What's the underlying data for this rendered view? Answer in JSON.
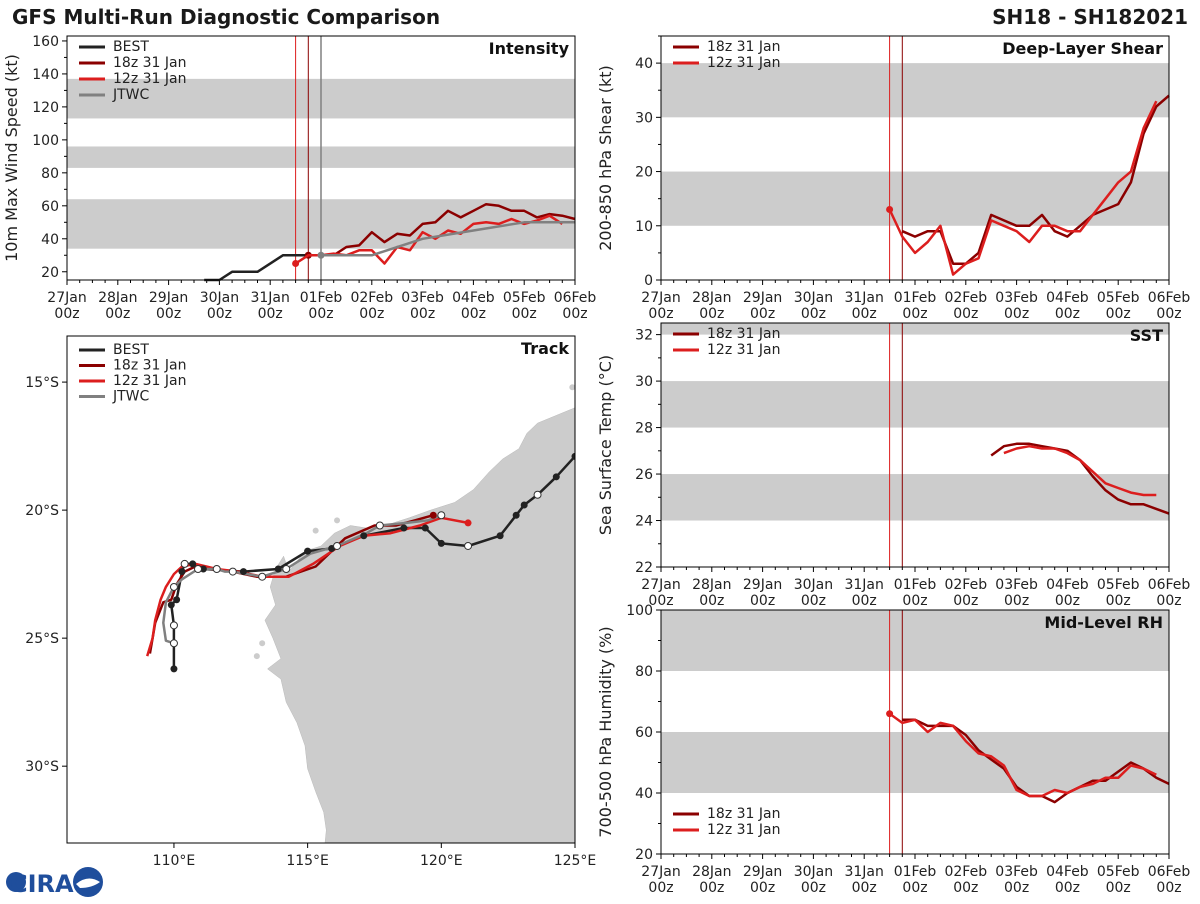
{
  "header": {
    "title": "GFS Multi-Run Diagnostic Comparison",
    "storm_id": "SH18 - SH182021"
  },
  "logo": {
    "text": "CIRA"
  },
  "colors": {
    "best": "#222222",
    "run18z": "#8b0000",
    "run12z": "#dc1e1e",
    "jtwc": "#808080",
    "band": "#cccccc",
    "land": "#cccccc",
    "marker": "#c8102e"
  },
  "time_axis": {
    "ticks": [
      {
        "t": 0,
        "l1": "27Jan",
        "l2": "00z"
      },
      {
        "t": 1,
        "l1": "28Jan",
        "l2": "00z"
      },
      {
        "t": 2,
        "l1": "29Jan",
        "l2": "00z"
      },
      {
        "t": 3,
        "l1": "30Jan",
        "l2": "00z"
      },
      {
        "t": 4,
        "l1": "31Jan",
        "l2": "00z"
      },
      {
        "t": 5,
        "l1": "01Feb",
        "l2": "00z"
      },
      {
        "t": 6,
        "l1": "02Feb",
        "l2": "00z"
      },
      {
        "t": 7,
        "l1": "03Feb",
        "l2": "00z"
      },
      {
        "t": 8,
        "l1": "04Feb",
        "l2": "00z"
      },
      {
        "t": 9,
        "l1": "05Feb",
        "l2": "00z"
      },
      {
        "t": 10,
        "l1": "06Feb",
        "l2": "00z"
      }
    ],
    "xlim": [
      0,
      10
    ],
    "init_times": [
      4.5,
      4.75
    ]
  },
  "chart_data": [
    {
      "id": "intensity",
      "type": "line",
      "title": "Intensity",
      "ylabel": "10m Max Wind Speed (kt)",
      "ylim": [
        15,
        163
      ],
      "yticks": [
        20,
        40,
        60,
        80,
        100,
        120,
        140,
        160
      ],
      "bands": [
        [
          34,
          64
        ],
        [
          83,
          96
        ],
        [
          113,
          137
        ]
      ],
      "extra_vlines": [
        5.0
      ],
      "legend": [
        "BEST",
        "18z 31 Jan",
        "12z 31 Jan",
        "JTWC"
      ],
      "series": [
        {
          "name": "BEST",
          "key": "best",
          "x": [
            2.7,
            2.95,
            3.0,
            3.25,
            3.75,
            4.25,
            4.75,
            5.0
          ],
          "y": [
            15,
            15,
            15,
            20,
            20,
            30,
            30,
            30
          ]
        },
        {
          "name": "18z 31 Jan",
          "key": "run18z",
          "dots": [
            0
          ],
          "x": [
            4.75,
            5.0,
            5.25,
            5.5,
            5.75,
            6.0,
            6.25,
            6.5,
            6.75,
            7.0,
            7.25,
            7.5,
            7.75,
            8.0,
            8.25,
            8.5,
            8.75,
            9.0,
            9.25,
            9.5,
            9.75,
            10.0
          ],
          "y": [
            30,
            30,
            30,
            35,
            36,
            44,
            38,
            43,
            42,
            49,
            50,
            57,
            53,
            57,
            61,
            60,
            57,
            57,
            53,
            55,
            54,
            52
          ]
        },
        {
          "name": "12z 31 Jan",
          "key": "run12z",
          "dots": [
            0
          ],
          "x": [
            4.5,
            4.75,
            5.0,
            5.25,
            5.5,
            5.75,
            6.0,
            6.25,
            6.5,
            6.75,
            7.0,
            7.25,
            7.5,
            7.75,
            8.0,
            8.25,
            8.5,
            8.75,
            9.0,
            9.25,
            9.5,
            9.75
          ],
          "y": [
            25,
            30,
            30,
            31,
            30,
            33,
            33,
            25,
            35,
            33,
            44,
            40,
            45,
            43,
            49,
            50,
            49,
            52,
            49,
            51,
            54,
            49
          ]
        },
        {
          "name": "JTWC",
          "key": "jtwc",
          "dots": [
            0
          ],
          "x": [
            5.0,
            6.0,
            7.0,
            8.0,
            9.0,
            10.0
          ],
          "y": [
            30,
            30,
            40,
            45,
            50,
            50
          ]
        }
      ]
    },
    {
      "id": "shear",
      "type": "line",
      "title": "Deep-Layer Shear",
      "ylabel": "200-850 hPa Shear (kt)",
      "ylim": [
        0,
        45
      ],
      "yticks": [
        0,
        10,
        20,
        30,
        40
      ],
      "bands": [
        [
          10,
          20
        ],
        [
          30,
          40
        ]
      ],
      "extra_vlines": [],
      "legend": [
        "18z 31 Jan",
        "12z 31 Jan"
      ],
      "series": [
        {
          "name": "18z 31 Jan",
          "key": "run18z",
          "dots": [],
          "x": [
            4.75,
            5.0,
            5.25,
            5.5,
            5.75,
            6.0,
            6.25,
            6.5,
            6.75,
            7.0,
            7.25,
            7.5,
            7.75,
            8.0,
            8.25,
            8.5,
            8.75,
            9.0,
            9.25,
            9.5,
            9.75,
            10.0
          ],
          "y": [
            9,
            8,
            9,
            9,
            3,
            3,
            5,
            12,
            11,
            10,
            10,
            12,
            9,
            8,
            10,
            12,
            13,
            14,
            18,
            27,
            32,
            34
          ]
        },
        {
          "name": "12z 31 Jan",
          "key": "run12z",
          "dots": [
            0
          ],
          "x": [
            4.5,
            4.75,
            5.0,
            5.25,
            5.5,
            5.75,
            6.0,
            6.25,
            6.5,
            6.75,
            7.0,
            7.25,
            7.5,
            7.75,
            8.0,
            8.25,
            8.5,
            8.75,
            9.0,
            9.25,
            9.5,
            9.75
          ],
          "y": [
            13,
            8,
            5,
            7,
            10,
            1,
            3,
            4,
            11,
            10,
            9,
            7,
            10,
            10,
            9,
            9,
            12,
            15,
            18,
            20,
            28,
            33
          ]
        }
      ]
    },
    {
      "id": "sst",
      "type": "line",
      "title": "SST",
      "ylabel": "Sea Surface Temp (°C)",
      "ylim": [
        22,
        32.5
      ],
      "yticks": [
        22,
        24,
        26,
        28,
        30,
        32
      ],
      "bands": [
        [
          24,
          26
        ],
        [
          28,
          30
        ],
        [
          32,
          34
        ]
      ],
      "extra_vlines": [],
      "legend": [
        "18z 31 Jan",
        "12z 31 Jan"
      ],
      "series": [
        {
          "name": "18z 31 Jan",
          "key": "run18z",
          "dots": [],
          "x": [
            6.5,
            6.75,
            7.0,
            7.25,
            7.5,
            7.75,
            8.0,
            8.25,
            8.5,
            8.75,
            9.0,
            9.25,
            9.5,
            9.75,
            10.0
          ],
          "y": [
            26.8,
            27.2,
            27.3,
            27.3,
            27.2,
            27.1,
            27.0,
            26.6,
            25.9,
            25.3,
            24.9,
            24.7,
            24.7,
            24.5,
            24.3
          ]
        },
        {
          "name": "12z 31 Jan",
          "key": "run12z",
          "dots": [],
          "x": [
            6.75,
            7.0,
            7.25,
            7.5,
            7.75,
            8.0,
            8.25,
            8.5,
            8.75,
            9.0,
            9.25,
            9.5,
            9.75
          ],
          "y": [
            26.9,
            27.1,
            27.2,
            27.1,
            27.1,
            26.9,
            26.6,
            26.1,
            25.6,
            25.4,
            25.2,
            25.1,
            25.1
          ]
        }
      ]
    },
    {
      "id": "rh",
      "type": "line",
      "title": "Mid-Level RH",
      "ylabel": "700-500 hPa Humidity (%)",
      "ylim": [
        20,
        100
      ],
      "yticks": [
        20,
        40,
        60,
        80,
        100
      ],
      "bands": [
        [
          40,
          60
        ],
        [
          80,
          100
        ]
      ],
      "extra_vlines": [],
      "legend": [
        "18z 31 Jan",
        "12z 31 Jan"
      ],
      "legend_pos": "bottom-left",
      "series": [
        {
          "name": "18z 31 Jan",
          "key": "run18z",
          "dots": [],
          "x": [
            4.75,
            5.0,
            5.25,
            5.5,
            5.75,
            6.0,
            6.25,
            6.5,
            6.75,
            7.0,
            7.25,
            7.5,
            7.75,
            8.0,
            8.25,
            8.5,
            8.75,
            9.0,
            9.25,
            9.5,
            9.75,
            10.0
          ],
          "y": [
            64,
            64,
            62,
            62,
            62,
            59,
            54,
            51,
            48,
            42,
            39,
            39,
            37,
            40,
            42,
            44,
            44,
            47,
            50,
            48,
            45,
            43
          ]
        },
        {
          "name": "12z 31 Jan",
          "key": "run12z",
          "dots": [
            0
          ],
          "x": [
            4.5,
            4.75,
            5.0,
            5.25,
            5.5,
            5.75,
            6.0,
            6.25,
            6.5,
            6.75,
            7.0,
            7.25,
            7.5,
            7.75,
            8.0,
            8.25,
            8.5,
            8.75,
            9.0,
            9.25,
            9.5,
            9.75
          ],
          "y": [
            66,
            63,
            64,
            60,
            63,
            62,
            57,
            53,
            52,
            49,
            41,
            39,
            39,
            41,
            40,
            42,
            43,
            45,
            45,
            49,
            48,
            46
          ]
        }
      ]
    },
    {
      "id": "track",
      "type": "scatter",
      "title": "Track",
      "xlim": [
        106,
        125
      ],
      "ylim": [
        -33,
        -13.2
      ],
      "xticks": [
        {
          "v": 110,
          "l": "110°E"
        },
        {
          "v": 115,
          "l": "115°E"
        },
        {
          "v": 120,
          "l": "120°E"
        },
        {
          "v": 125,
          "l": "125°E"
        }
      ],
      "yticks": [
        {
          "v": -15,
          "l": "15°S"
        },
        {
          "v": -20,
          "l": "20°S"
        },
        {
          "v": -25,
          "l": "25°S"
        },
        {
          "v": -30,
          "l": "30°S"
        }
      ],
      "legend": [
        "BEST",
        "18z 31 Jan",
        "12z 31 Jan",
        "JTWC"
      ],
      "series": [
        {
          "name": "BEST",
          "key": "best",
          "lon": [
            125.0,
            124.3,
            123.6,
            123.1,
            122.8,
            122.2,
            121.0,
            120.0,
            119.4,
            118.6,
            117.1,
            115.9,
            115.0,
            113.9,
            112.6,
            111.1,
            110.7,
            110.4,
            110.3,
            110.1,
            109.9,
            110.0,
            110.0
          ],
          "lat": [
            -17.9,
            -18.7,
            -19.4,
            -19.8,
            -20.2,
            -21.0,
            -21.4,
            -21.3,
            -20.7,
            -20.7,
            -21.0,
            -21.5,
            -21.6,
            -22.3,
            -22.4,
            -22.3,
            -22.1,
            -22.1,
            -22.4,
            -23.5,
            -23.7,
            -24.5,
            -26.2
          ],
          "dots": [
            0,
            1,
            2,
            3,
            4,
            5,
            6,
            7,
            8,
            9,
            10,
            11,
            12,
            13,
            14,
            15,
            16,
            17,
            18,
            19,
            20,
            21,
            22
          ],
          "hollow": [
            2,
            6,
            17,
            21
          ]
        },
        {
          "name": "18z 31 Jan",
          "key": "run18z",
          "lon": [
            119.7,
            119.0,
            118.3,
            117.5,
            116.4,
            115.3,
            114.2,
            113.1,
            112.2,
            111.4,
            110.8,
            110.4,
            110.1,
            109.9,
            109.6,
            109.3,
            109.2,
            109.1
          ],
          "lat": [
            -20.2,
            -20.4,
            -20.6,
            -20.6,
            -21.1,
            -22.2,
            -22.6,
            -22.6,
            -22.4,
            -22.3,
            -22.2,
            -22.4,
            -22.9,
            -23.5,
            -23.6,
            -24.4,
            -25.0,
            -25.6
          ],
          "dots": [
            0
          ],
          "hollow": []
        },
        {
          "name": "12z 31 Jan",
          "key": "run12z",
          "lon": [
            121.0,
            120.0,
            119.2,
            118.1,
            117.1,
            116.2,
            115.2,
            114.3,
            113.3,
            112.4,
            111.6,
            110.8,
            110.3,
            110.0,
            109.7,
            109.5,
            109.3,
            109.2,
            109.0
          ],
          "lat": [
            -20.5,
            -20.3,
            -20.6,
            -20.9,
            -21.0,
            -21.4,
            -22.1,
            -22.6,
            -22.6,
            -22.4,
            -22.3,
            -22.1,
            -22.2,
            -22.5,
            -23.0,
            -23.5,
            -24.3,
            -25.0,
            -25.7
          ],
          "dots": [
            0
          ],
          "hollow": []
        },
        {
          "name": "JTWC",
          "key": "jtwc",
          "lon": [
            120.0,
            119.5,
            118.7,
            117.7,
            117.2,
            116.1,
            115.1,
            114.2,
            113.3,
            112.2,
            111.9,
            111.6,
            110.9,
            110.3,
            110.0,
            109.7,
            109.6,
            109.7,
            110.0
          ],
          "lat": [
            -20.2,
            -20.4,
            -20.5,
            -20.6,
            -20.9,
            -21.4,
            -21.7,
            -22.3,
            -22.6,
            -22.4,
            -22.4,
            -22.3,
            -22.3,
            -22.7,
            -23.0,
            -23.6,
            -24.4,
            -25.1,
            -25.2
          ],
          "dots": [
            0,
            3,
            5,
            7,
            8,
            9,
            11,
            12,
            14,
            18
          ],
          "hollow": [
            0,
            3,
            5,
            7,
            8,
            9,
            11,
            12,
            14,
            18
          ]
        }
      ]
    }
  ]
}
